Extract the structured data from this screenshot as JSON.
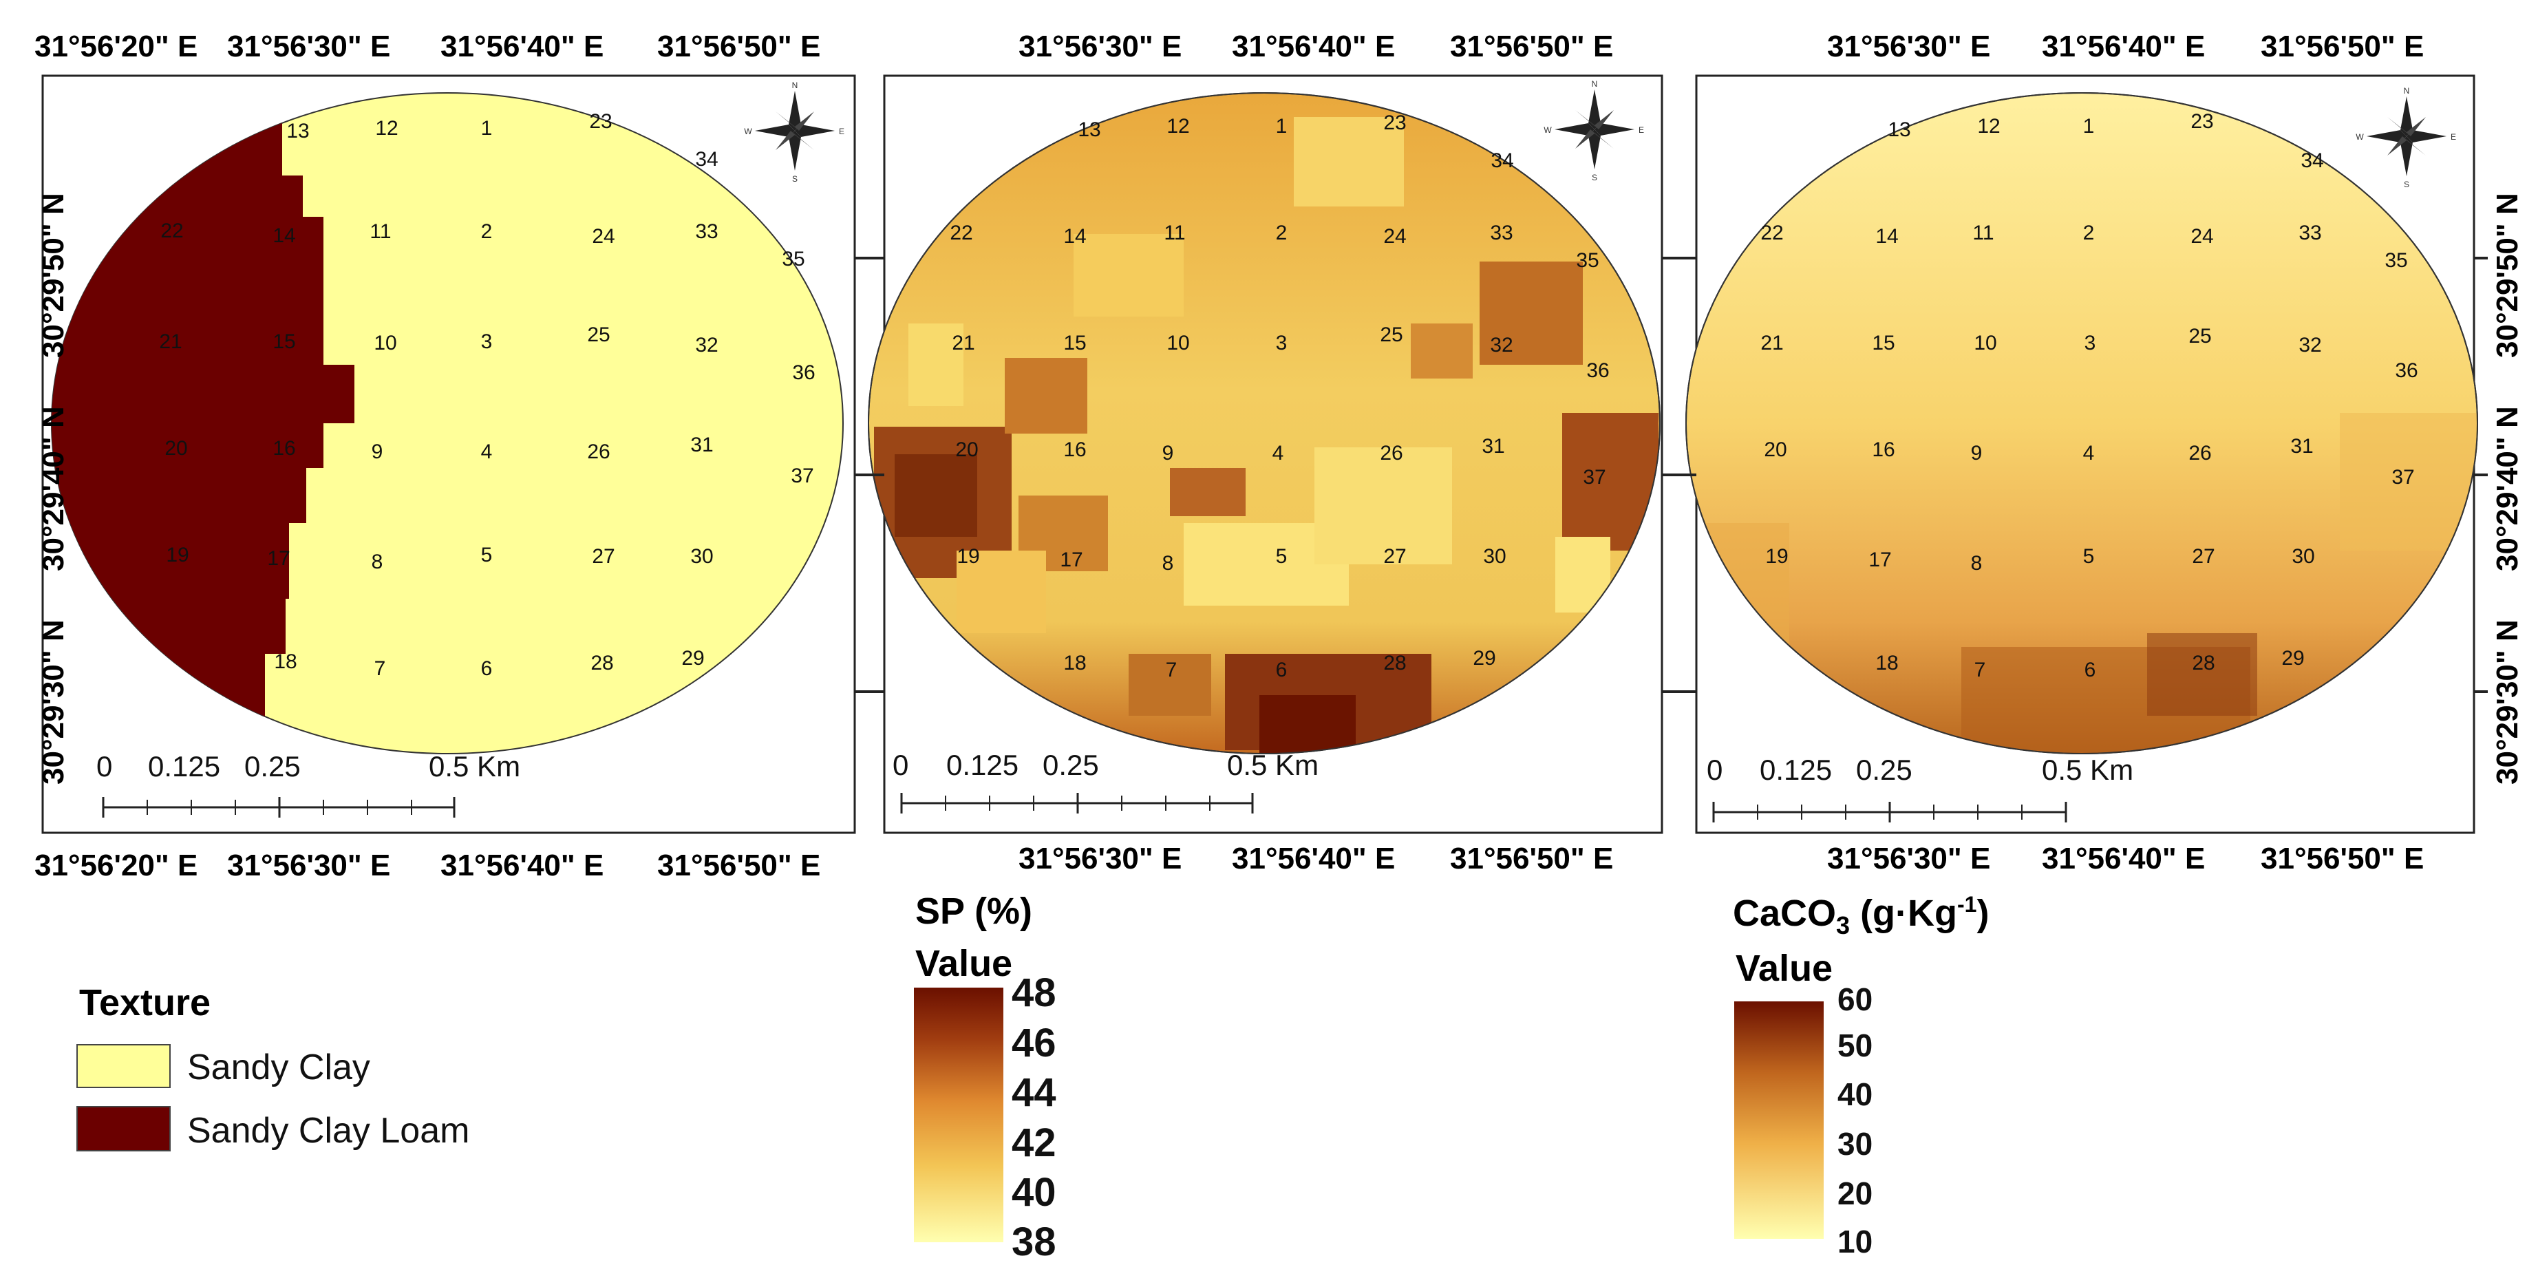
{
  "coords": {
    "lon_map1": [
      "31°56'20\" E",
      "31°56'30\" E",
      "31°56'40\" E",
      "31°56'50\" E"
    ],
    "lon_map23": [
      "31°56'30\" E",
      "31°56'40\" E",
      "31°56'50\" E"
    ],
    "lat": [
      "30°29'50\" N",
      "30°29'40\" N",
      "30°29'30\" N"
    ]
  },
  "points": [
    "1",
    "2",
    "3",
    "4",
    "5",
    "6",
    "7",
    "8",
    "9",
    "10",
    "11",
    "12",
    "13",
    "14",
    "15",
    "16",
    "17",
    "18",
    "19",
    "20",
    "21",
    "22",
    "23",
    "24",
    "25",
    "26",
    "27",
    "28",
    "29",
    "30",
    "31",
    "32",
    "33",
    "34",
    "35",
    "36",
    "37"
  ],
  "scale": {
    "map1": [
      "0",
      "0.125",
      "0.25",
      "0.5 Km"
    ],
    "map2": [
      "0",
      "0.125",
      "0.25",
      "0.5 Km"
    ],
    "map3": [
      "0",
      "0.125",
      "0.25",
      "0.5 Km"
    ]
  },
  "compass": {
    "n": "N",
    "s": "S",
    "e": "E",
    "w": "W"
  },
  "legend_texture": {
    "title": "Texture",
    "items": [
      {
        "label": "Sandy Clay",
        "color": "#ffff99"
      },
      {
        "label": "Sandy Clay Loam",
        "color": "#6b0000"
      }
    ]
  },
  "legend_sp": {
    "title": "SP (%)",
    "subtitle": "Value",
    "ticks": [
      "48",
      "46",
      "44",
      "42",
      "40",
      "38"
    ]
  },
  "legend_caco3": {
    "title_main": "CaCO",
    "title_sub": "3",
    "title_unit": " (g·Kg",
    "title_sup": "-1",
    "title_close": ")",
    "subtitle": "Value",
    "ticks": [
      "60",
      "50",
      "40",
      "30",
      "20",
      "10"
    ]
  },
  "colors": {
    "sandy_clay": "#ffff99",
    "sandy_clay_loam": "#6b0000",
    "ramp_low": "#ffffb0",
    "ramp_mid": "#e8a030",
    "ramp_high": "#6b1000"
  }
}
